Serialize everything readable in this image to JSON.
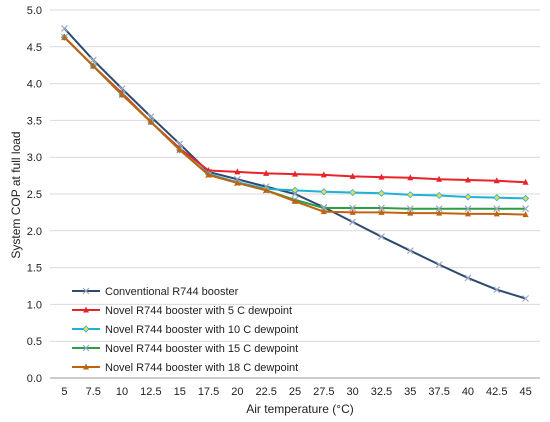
{
  "chart_data": {
    "type": "line",
    "title": "",
    "xlabel": "Air temperature  (°C)",
    "ylabel": "System  COP at full load",
    "x": [
      5,
      7.5,
      10,
      12.5,
      15,
      17.5,
      20,
      22.5,
      25,
      27.5,
      30,
      32.5,
      35,
      37.5,
      40,
      42.5,
      45
    ],
    "x_tick_labels": [
      "5",
      "7.5",
      "10",
      "12.5",
      "15",
      "17.5",
      "20",
      "22.5",
      "25",
      "27.5",
      "30",
      "32.5",
      "35",
      "37.5",
      "40",
      "42.5",
      "45"
    ],
    "ylim": [
      0,
      5
    ],
    "y_ticks": [
      0,
      0.5,
      1,
      1.5,
      2,
      2.5,
      3,
      3.5,
      4,
      4.5,
      5
    ],
    "y_tick_labels": [
      "0.0",
      "0.5",
      "1.0",
      "1.5",
      "2.0",
      "2.5",
      "3.0",
      "3.5",
      "4.0",
      "4.5",
      "5.0"
    ],
    "grid": "horizontal",
    "legend_position": "bottom-left",
    "series": [
      {
        "name": "Conventional R744 booster",
        "color": "#2E4A6E",
        "marker": "x",
        "values": [
          4.75,
          4.32,
          3.93,
          3.55,
          3.18,
          2.8,
          2.7,
          2.6,
          2.5,
          2.32,
          2.12,
          1.92,
          1.73,
          1.54,
          1.36,
          1.2,
          1.08
        ]
      },
      {
        "name": "Novel R744 booster with 5 C dewpoint",
        "color": "#E8242A",
        "marker": "triangle",
        "values": [
          4.63,
          4.24,
          3.87,
          3.48,
          3.12,
          2.82,
          2.8,
          2.78,
          2.77,
          2.76,
          2.74,
          2.73,
          2.72,
          2.7,
          2.69,
          2.68,
          2.66
        ]
      },
      {
        "name": "Novel R744 booster with 10 C dewpoint",
        "color": "#1FB2D6",
        "marker": "diamond",
        "values": [
          4.63,
          4.24,
          3.85,
          3.48,
          3.1,
          2.77,
          2.66,
          2.57,
          2.55,
          2.53,
          2.52,
          2.51,
          2.49,
          2.48,
          2.46,
          2.45,
          2.44
        ]
      },
      {
        "name": "Novel R744 booster with 15 C dewpoint",
        "color": "#2E9E44",
        "marker": "x",
        "values": [
          4.63,
          4.24,
          3.85,
          3.48,
          3.1,
          2.76,
          2.65,
          2.55,
          2.42,
          2.31,
          2.31,
          2.31,
          2.3,
          2.3,
          2.3,
          2.3,
          2.3
        ]
      },
      {
        "name": "Novel R744 booster with 18 C dewpoint",
        "color": "#C0630F",
        "marker": "triangle",
        "values": [
          4.63,
          4.24,
          3.85,
          3.48,
          3.1,
          2.76,
          2.65,
          2.55,
          2.4,
          2.26,
          2.25,
          2.25,
          2.24,
          2.24,
          2.23,
          2.23,
          2.22
        ]
      }
    ]
  }
}
